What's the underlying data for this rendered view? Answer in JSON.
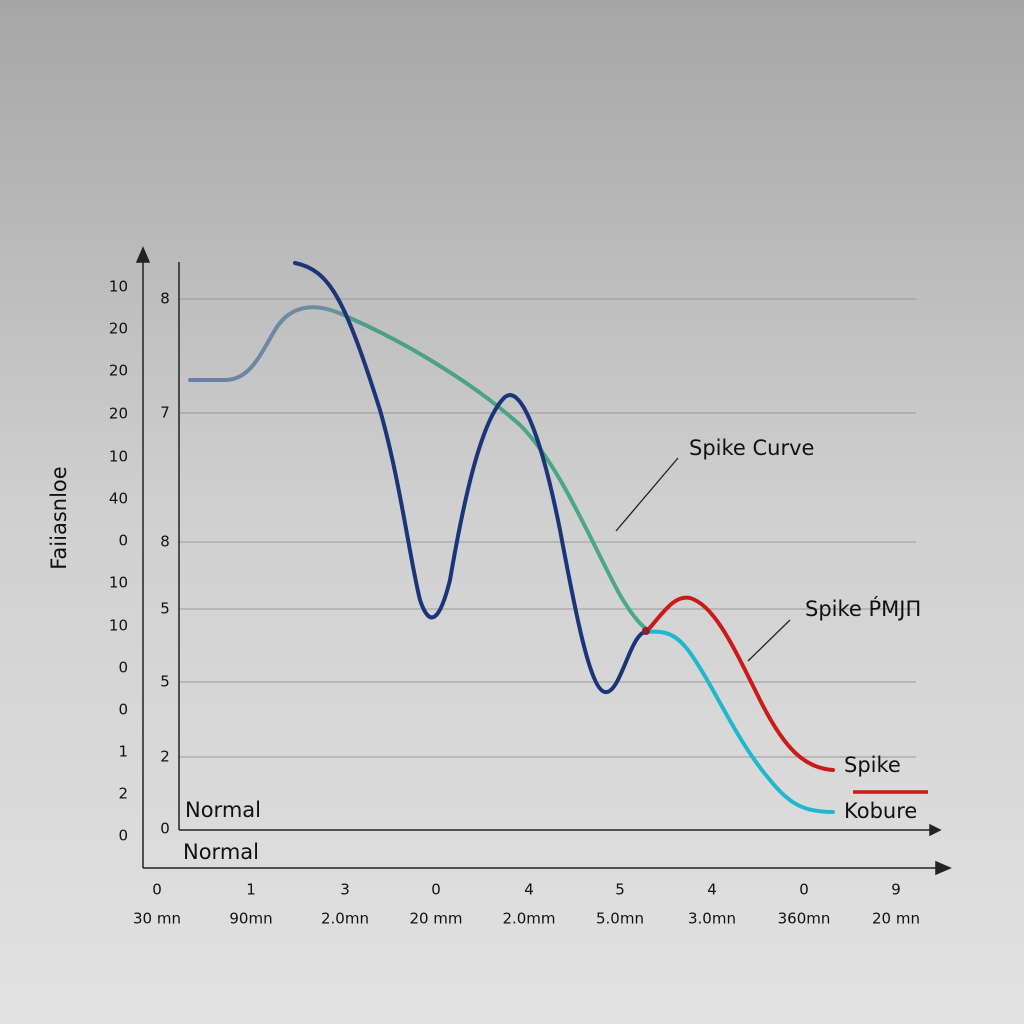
{
  "y_axis_title": "Faiiasnloe",
  "outer_y_labels": [
    "10",
    "20",
    "20",
    "20",
    "10",
    "40",
    "0",
    "10",
    "10",
    "0",
    "0",
    "1",
    "2",
    "0"
  ],
  "inner_y_labels": [
    "8",
    "7",
    "8",
    "5",
    "5",
    "2",
    "0"
  ],
  "x_labels_top": [
    "0",
    "1",
    "3",
    "0",
    "4",
    "5",
    "4",
    "0",
    "9"
  ],
  "x_labels_bottom": [
    "30 mn",
    "90mn",
    "2.0mn",
    "20 mm",
    "2.0mm",
    "5.0mn",
    "3.0mn",
    "360mn",
    "20 mn"
  ],
  "annotations": [
    "Spike Curve",
    "Spike ṔMJП"
  ],
  "baseline_labels": [
    "Normal",
    "Normal"
  ],
  "legend": [
    "Spike",
    "Kobure"
  ]
}
